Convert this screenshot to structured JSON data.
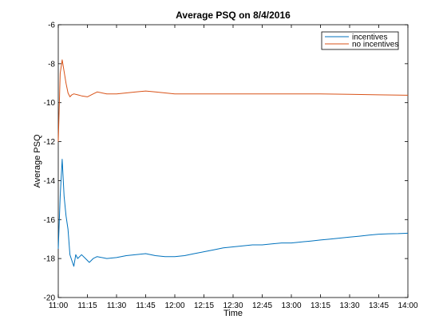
{
  "chart_data": {
    "type": "line",
    "title": "Average PSQ on 8/4/2016",
    "xlabel": "Time",
    "ylabel": "Average PSQ",
    "ylim": [
      -20,
      -6
    ],
    "yticks": [
      -20,
      -18,
      -16,
      -14,
      -12,
      -10,
      -8,
      -6
    ],
    "xlim": [
      "11:00",
      "14:00"
    ],
    "xticks": [
      "11:00",
      "11:15",
      "11:30",
      "11:45",
      "12:00",
      "12:15",
      "12:30",
      "12:45",
      "13:00",
      "13:15",
      "13:30",
      "13:45",
      "14:00"
    ],
    "grid": false,
    "legend": "top-right",
    "series": [
      {
        "name": "incentives",
        "color": "#0072bd",
        "points": [
          [
            "11:00",
            -17.5
          ],
          [
            "11:01",
            -14.8
          ],
          [
            "11:02",
            -12.9
          ],
          [
            "11:03",
            -14.8
          ],
          [
            "11:04",
            -15.8
          ],
          [
            "11:05",
            -16.5
          ],
          [
            "11:06",
            -17.8
          ],
          [
            "11:07",
            -18.1
          ],
          [
            "11:08",
            -18.4
          ],
          [
            "11:09",
            -17.8
          ],
          [
            "11:10",
            -18.0
          ],
          [
            "11:12",
            -17.8
          ],
          [
            "11:14",
            -18.0
          ],
          [
            "11:16",
            -18.2
          ],
          [
            "11:18",
            -18.0
          ],
          [
            "11:20",
            -17.9
          ],
          [
            "11:25",
            -18.0
          ],
          [
            "11:30",
            -17.95
          ],
          [
            "11:35",
            -17.85
          ],
          [
            "11:40",
            -17.8
          ],
          [
            "11:45",
            -17.75
          ],
          [
            "11:50",
            -17.85
          ],
          [
            "11:55",
            -17.9
          ],
          [
            "12:00",
            -17.9
          ],
          [
            "12:05",
            -17.85
          ],
          [
            "12:10",
            -17.75
          ],
          [
            "12:15",
            -17.65
          ],
          [
            "12:20",
            -17.55
          ],
          [
            "12:25",
            -17.45
          ],
          [
            "12:30",
            -17.4
          ],
          [
            "12:35",
            -17.35
          ],
          [
            "12:40",
            -17.3
          ],
          [
            "12:45",
            -17.3
          ],
          [
            "12:50",
            -17.25
          ],
          [
            "12:55",
            -17.2
          ],
          [
            "13:00",
            -17.2
          ],
          [
            "13:05",
            -17.15
          ],
          [
            "13:10",
            -17.1
          ],
          [
            "13:15",
            -17.05
          ],
          [
            "13:20",
            -17.0
          ],
          [
            "13:25",
            -16.95
          ],
          [
            "13:30",
            -16.9
          ],
          [
            "13:35",
            -16.85
          ],
          [
            "13:40",
            -16.8
          ],
          [
            "13:45",
            -16.75
          ],
          [
            "13:50",
            -16.73
          ],
          [
            "13:55",
            -16.72
          ],
          [
            "14:00",
            -16.7
          ]
        ]
      },
      {
        "name": "no incentives",
        "color": "#d95319",
        "points": [
          [
            "11:00",
            -12.0
          ],
          [
            "11:01",
            -8.5
          ],
          [
            "11:02",
            -7.8
          ],
          [
            "11:03",
            -8.4
          ],
          [
            "11:04",
            -9.0
          ],
          [
            "11:05",
            -9.5
          ],
          [
            "11:06",
            -9.7
          ],
          [
            "11:07",
            -9.6
          ],
          [
            "11:08",
            -9.55
          ],
          [
            "11:10",
            -9.6
          ],
          [
            "11:12",
            -9.65
          ],
          [
            "11:15",
            -9.7
          ],
          [
            "11:18",
            -9.55
          ],
          [
            "11:20",
            -9.45
          ],
          [
            "11:25",
            -9.55
          ],
          [
            "11:30",
            -9.55
          ],
          [
            "11:35",
            -9.5
          ],
          [
            "11:40",
            -9.45
          ],
          [
            "11:45",
            -9.4
          ],
          [
            "11:50",
            -9.45
          ],
          [
            "11:55",
            -9.5
          ],
          [
            "12:00",
            -9.55
          ],
          [
            "12:05",
            -9.55
          ],
          [
            "12:10",
            -9.55
          ],
          [
            "12:15",
            -9.55
          ],
          [
            "12:20",
            -9.55
          ],
          [
            "12:30",
            -9.55
          ],
          [
            "12:45",
            -9.55
          ],
          [
            "13:00",
            -9.55
          ],
          [
            "13:15",
            -9.55
          ],
          [
            "13:30",
            -9.57
          ],
          [
            "13:45",
            -9.6
          ],
          [
            "14:00",
            -9.62
          ]
        ]
      }
    ]
  }
}
